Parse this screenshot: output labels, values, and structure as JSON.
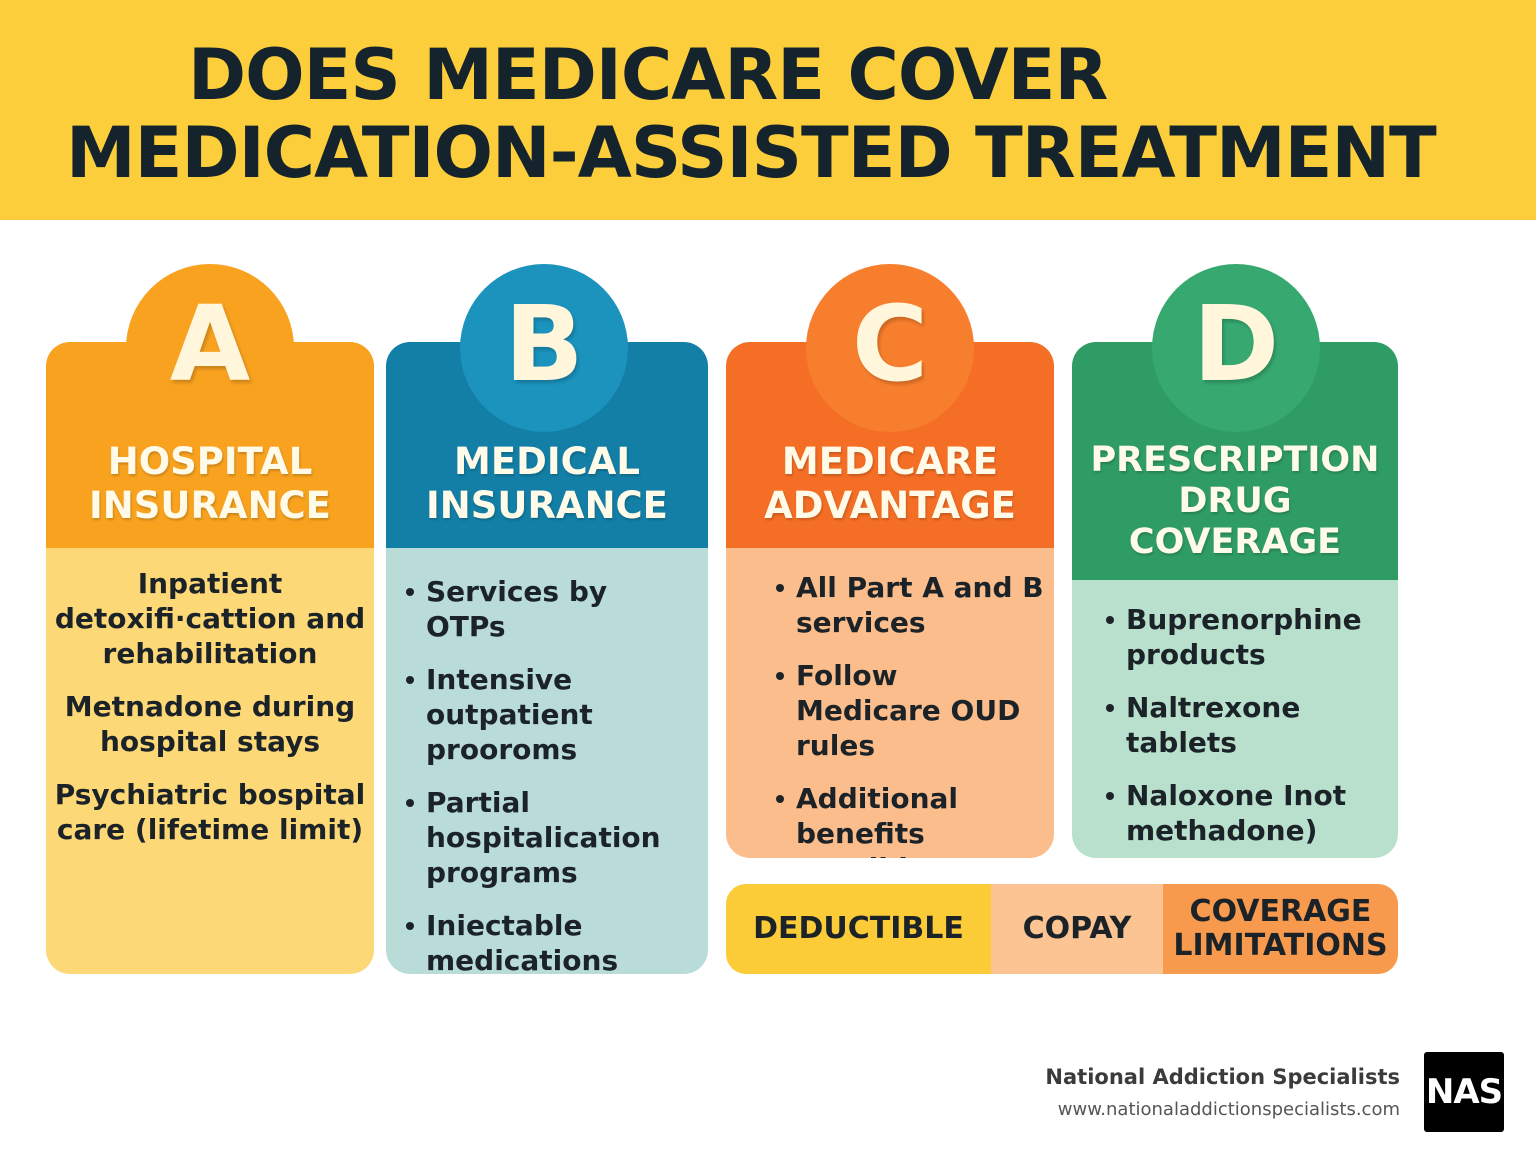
{
  "title": {
    "line1": "DOES MEDICARE COVER",
    "line2": "MEDICATION-ASSISTED TREATMENT"
  },
  "colors": {
    "banner": "#fcce3c",
    "part_a": "#f8a21f",
    "part_b": "#137fa6",
    "part_c": "#f56e25",
    "part_d": "#2f9c66"
  },
  "parts": [
    {
      "letter": "A",
      "heading_line1": "HOSPITAL",
      "heading_line2": "INSURANCE",
      "items": [
        "Inpatient detoxifi·cattion and rehabilitation",
        "Metnadone during hospital stays",
        "Psychiatric bospital care (lifetime limit)"
      ]
    },
    {
      "letter": "B",
      "heading_line1": "MEDICAL",
      "heading_line2": "INSURANCE",
      "items": [
        "Services by OTPs",
        "Intensive outpatient prooroms",
        "Partial hospitalication programs",
        "Iniectable medications"
      ]
    },
    {
      "letter": "C",
      "heading_line1": "MEDICARE",
      "heading_line2": "ADVANTAGE",
      "items": [
        "All Part A and B services",
        "Follow Medicare OUD rules",
        "Additional benefits possible"
      ]
    },
    {
      "letter": "D",
      "heading_line1": "PRESCRIPTION",
      "heading_line2": "DRUG",
      "heading_line3": "COVERAGE",
      "items": [
        "Buprenorphine products",
        "Naltrexone tablets",
        "Naloxone Inot methadone)"
      ]
    }
  ],
  "costs": {
    "deductible": "DEDUCTIBLE",
    "copay": "COPAY",
    "limitations_line1": "COVERAGE",
    "limitations_line2": "LIMITATIONS"
  },
  "footer": {
    "org_name": "National Addiction Specialists",
    "url": "www.nationaladdictionspecialists.com",
    "logo_text": "NAS"
  }
}
